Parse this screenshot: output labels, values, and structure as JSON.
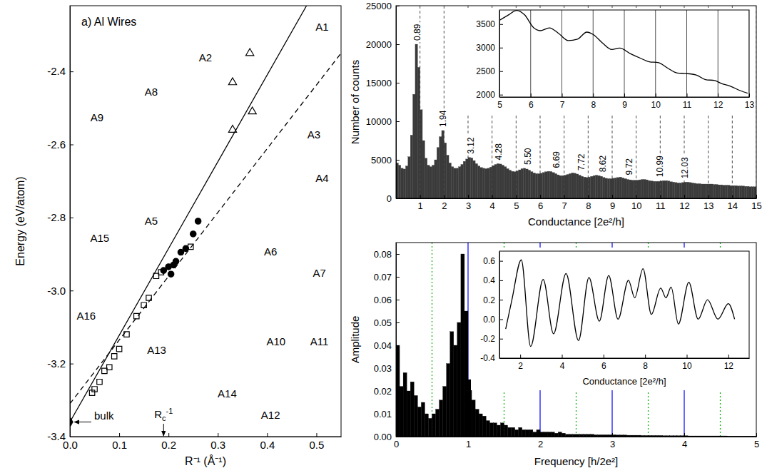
{
  "chart_data": [
    {
      "type": "scatter",
      "title": "a) Al Wires",
      "xlabel": "R⁻¹ (Å⁻¹)",
      "ylabel": "Energy (eV/atom)",
      "xlim": [
        0,
        0.55
      ],
      "ylim": [
        -3.4,
        -2.22
      ],
      "xticks": [
        {
          "value": 0,
          "label": "0.0"
        },
        0.1,
        0.2,
        0.3,
        0.4,
        0.5
      ],
      "yticks": [
        -3.4,
        -3.2,
        {
          "value": -3,
          "label": "-3.0"
        },
        -2.8,
        -2.6,
        -2.4
      ],
      "series": [
        {
          "type": "line",
          "line_style": "solid",
          "color": "#000000",
          "x": [
            0,
            0.48
          ],
          "values": [
            -3.36,
            -2.22
          ]
        },
        {
          "type": "line",
          "line_style": "dashed",
          "color": "#000000",
          "x": [
            0,
            0.55
          ],
          "values": [
            -3.31,
            -2.35
          ]
        },
        {
          "type": "scatter",
          "marker": "filled-circle",
          "color": "#000000",
          "x": [
            0.26,
            0.25,
            0.235,
            0.225,
            0.215,
            0.21,
            0.2,
            0.19,
            0.205
          ],
          "values": [
            -2.81,
            -2.845,
            -2.885,
            -2.895,
            -2.92,
            -2.93,
            -2.935,
            -2.945,
            -2.955
          ]
        },
        {
          "type": "scatter",
          "marker": "open-square",
          "color": "#000000",
          "x": [
            0.245,
            0.175,
            0.185,
            0.16,
            0.15,
            0.135,
            0.115,
            0.1,
            0.09,
            0.08,
            0.07,
            0.06,
            0.05,
            0.045
          ],
          "values": [
            -2.88,
            -2.96,
            -2.95,
            -3.02,
            -3.04,
            -3.07,
            -3.12,
            -3.16,
            -3.18,
            -3.21,
            -3.22,
            -3.25,
            -3.27,
            -3.28
          ]
        },
        {
          "type": "scatter",
          "marker": "open-triangle",
          "color": "#000000",
          "x": [
            0.33,
            0.33,
            0.365,
            0.37
          ],
          "values": [
            -2.56,
            -2.43,
            -2.35,
            -2.51
          ]
        },
        {
          "type": "scatter",
          "marker": "filled-diamond",
          "color": "#000000",
          "x": [
            0
          ],
          "values": [
            -3.36
          ]
        }
      ],
      "annotations": [
        {
          "text": "bulk"
        },
        {
          "text": "R",
          "sub": "c",
          "sup": "-1",
          "x": 0.19
        },
        {
          "text": "A1"
        },
        {
          "text": "A2"
        },
        {
          "text": "A3"
        },
        {
          "text": "A4"
        },
        {
          "text": "A5"
        },
        {
          "text": "A6"
        },
        {
          "text": "A7"
        },
        {
          "text": "A8"
        },
        {
          "text": "A9"
        },
        {
          "text": "A10"
        },
        {
          "text": "A11"
        },
        {
          "text": "A12"
        },
        {
          "text": "A13"
        },
        {
          "text": "A14"
        },
        {
          "text": "A15"
        },
        {
          "text": "A16"
        }
      ]
    },
    {
      "type": "histogram",
      "xlabel": "Conductance [2e²/h]",
      "ylabel": "Number of counts",
      "xlim": [
        0,
        15
      ],
      "ylim": [
        0,
        25000
      ],
      "xticks": [
        1,
        2,
        3,
        4,
        5,
        6,
        7,
        8,
        9,
        10,
        11,
        12,
        13,
        14,
        15
      ],
      "yticks": [
        0,
        5000,
        10000,
        15000,
        20000,
        25000
      ],
      "grid": true,
      "color": "#3a3a3a",
      "bins": [
        0,
        0.1,
        0.2,
        0.3,
        0.4,
        0.5,
        0.6,
        0.7,
        0.8,
        0.9,
        1,
        1.1,
        1.2,
        1.3,
        1.4,
        1.5,
        1.6,
        1.7,
        1.8,
        1.9,
        2,
        2.1,
        2.2,
        2.3,
        2.4,
        2.5,
        2.6,
        2.7,
        2.8,
        2.9,
        3,
        3.1,
        3.2,
        3.3,
        3.4,
        3.5,
        3.6,
        3.7,
        3.8,
        3.9,
        4,
        4.1,
        4.2,
        4.3,
        4.4,
        4.5,
        4.6,
        4.7,
        4.8,
        4.9,
        5,
        5.1,
        5.2,
        5.3,
        5.4,
        5.5,
        5.6,
        5.7,
        5.8,
        5.9,
        6,
        6.1,
        6.2,
        6.3,
        6.4,
        6.5,
        6.6,
        6.7,
        6.8,
        6.9,
        7,
        7.1,
        7.2,
        7.3,
        7.4,
        7.5,
        7.6,
        7.7,
        7.8,
        7.9,
        8,
        8.1,
        8.2,
        8.3,
        8.4,
        8.5,
        8.6,
        8.7,
        8.8,
        8.9,
        9,
        9.1,
        9.2,
        9.3,
        9.4,
        9.5,
        9.6,
        9.7,
        9.8,
        9.9,
        10,
        10.1,
        10.2,
        10.3,
        10.4,
        10.5,
        10.6,
        10.7,
        10.8,
        10.9,
        11,
        11.1,
        11.2,
        11.3,
        11.4,
        11.5,
        11.6,
        11.7,
        11.8,
        11.9,
        12,
        12.1,
        12.2,
        12.3,
        12.4,
        12.5,
        12.6,
        12.7,
        12.8,
        12.9,
        13,
        13.1,
        13.2,
        13.3,
        13.4,
        13.5,
        13.6,
        13.7,
        13.8,
        13.9,
        14,
        14.1,
        14.2,
        14.3,
        14.4,
        14.5,
        14.6,
        14.7,
        14.8,
        14.9,
        15
      ],
      "counts": [
        4600,
        4300,
        3900,
        3800,
        4200,
        5400,
        8200,
        13500,
        20000,
        17000,
        11500,
        7500,
        5200,
        4300,
        4100,
        4300,
        5000,
        6600,
        8000,
        8800,
        7200,
        5600,
        4600,
        4100,
        3900,
        3900,
        4100,
        4400,
        4800,
        5100,
        5300,
        5250,
        4900,
        4500,
        4200,
        4000,
        3900,
        3850,
        3900,
        4050,
        4250,
        4400,
        4500,
        4450,
        4300,
        4100,
        3850,
        3650,
        3500,
        3450,
        3550,
        3700,
        3850,
        3900,
        3800,
        3650,
        3450,
        3300,
        3200,
        3200,
        3250,
        3350,
        3450,
        3500,
        3480,
        3350,
        3200,
        3050,
        2950,
        2950,
        3000,
        3100,
        3200,
        3300,
        3250,
        3150,
        3000,
        2850,
        2750,
        2700,
        2750,
        2850,
        2950,
        3000,
        2950,
        2850,
        2700,
        2600,
        2550,
        2550,
        2600,
        2650,
        2700,
        2750,
        2650,
        2550,
        2450,
        2400,
        2350,
        2350,
        2350,
        2400,
        2450,
        2450,
        2400,
        2300,
        2250,
        2200,
        2200,
        2200,
        2250,
        2300,
        2300,
        2250,
        2150,
        2100,
        2050,
        2000,
        2000,
        2050,
        2100,
        2100,
        2050,
        2000,
        1950,
        1900,
        1900,
        1850,
        1850,
        1850,
        1850,
        1850,
        1800,
        1800,
        1750,
        1750,
        1700,
        1700,
        1700,
        1650,
        1650,
        1650,
        1600,
        1600,
        1600,
        1550,
        1550,
        1500,
        1500,
        1500
      ],
      "peaks": [
        0.89,
        1.94,
        3.12,
        4.28,
        {
          "value": 5.5,
          "label": "5.50"
        },
        6.69,
        7.72,
        8.62,
        9.72,
        10.99,
        12.03
      ]
    },
    {
      "type": "line",
      "xlim": [
        5,
        13
      ],
      "ylim": [
        1950,
        3800
      ],
      "xticks": [
        5,
        6,
        7,
        8,
        9,
        10,
        11,
        12,
        13
      ],
      "yticks": [
        2000,
        2500,
        3000,
        3500
      ],
      "grid": true,
      "color": "#000000",
      "x": [
        5.0,
        5.3,
        5.55,
        5.8,
        6.1,
        6.3,
        6.6,
        6.9,
        7.2,
        7.5,
        7.8,
        8.0,
        8.3,
        8.6,
        8.85,
        9.2,
        9.5,
        9.8,
        10.1,
        10.4,
        10.7,
        10.95,
        11.3,
        11.6,
        11.9,
        12.1,
        12.4,
        12.7,
        12.95
      ],
      "values": [
        3580,
        3700,
        3790,
        3700,
        3420,
        3360,
        3420,
        3300,
        3150,
        3180,
        3330,
        3280,
        3100,
        2960,
        2990,
        2870,
        2780,
        2700,
        2680,
        2560,
        2460,
        2450,
        2420,
        2320,
        2300,
        2240,
        2180,
        2090,
        2030
      ]
    },
    {
      "type": "histogram",
      "xlabel": "Frequency [h/2e²]",
      "ylabel": "Amplitude",
      "xlim": [
        0,
        5
      ],
      "ylim": [
        0,
        0.085
      ],
      "xticks": [
        0,
        1,
        2,
        3,
        4,
        5
      ],
      "yticks": [
        {
          "value": 0,
          "label": "0.00"
        },
        0.01,
        0.02,
        0.03,
        0.04,
        0.05,
        0.06,
        0.07,
        0.08
      ],
      "color": "#000000",
      "bins": [
        0,
        0.05,
        0.1,
        0.15,
        0.2,
        0.25,
        0.3,
        0.35,
        0.4,
        0.45,
        0.5,
        0.55,
        0.6,
        0.65,
        0.7,
        0.75,
        0.8,
        0.85,
        0.9,
        0.95,
        1,
        1.05,
        1.1,
        1.15,
        1.2,
        1.25,
        1.3,
        1.35,
        1.4,
        1.45,
        1.5,
        1.55,
        1.6,
        1.65,
        1.7,
        1.75,
        1.8,
        1.85,
        1.9,
        1.95,
        2,
        2.05,
        2.1,
        2.15,
        2.2,
        2.25,
        2.3,
        2.35,
        2.4,
        2.45,
        2.5,
        2.55,
        2.6,
        2.65,
        2.7,
        2.75,
        2.8,
        2.85,
        2.9,
        2.95,
        3,
        3.05,
        3.1,
        3.15,
        3.2,
        3.25,
        3.3,
        3.35,
        3.4,
        3.45,
        3.5,
        3.55,
        3.6,
        3.65,
        3.7,
        3.75,
        3.8,
        3.85,
        3.9,
        3.95,
        4,
        4.05,
        4.1,
        4.15,
        4.2,
        4.25,
        4.3,
        4.35,
        4.4,
        4.45,
        4.5,
        4.55,
        4.6,
        4.65,
        4.7,
        4.75,
        4.8,
        4.85,
        4.9,
        4.95,
        5
      ],
      "counts": [
        0.04,
        0.022,
        0.028,
        0.02,
        0.024,
        0.018,
        0.013,
        0.015,
        0.01,
        0.008,
        0.01,
        0.012,
        0.016,
        0.022,
        0.032,
        0.046,
        0.04,
        0.05,
        0.08,
        0.055,
        0.025,
        0.016,
        0.012,
        0.01,
        0.009,
        0.007,
        0.006,
        0.006,
        0.005,
        0.006,
        0.005,
        0.004,
        0.004,
        0.003,
        0.004,
        0.003,
        0.003,
        0.003,
        0.002,
        0.003,
        0.002,
        0.002,
        0.002,
        0.002,
        0.0015,
        0.002,
        0.0015,
        0.001,
        0.001,
        0.001,
        0.001,
        0.001,
        0.001,
        0.001,
        0.001,
        0.0008,
        0.0008,
        0.0008,
        0.0008,
        0.0008,
        0.0008,
        0.0007,
        0.0007,
        0.0007,
        0.0006,
        0.0006,
        0.0006,
        0.0006,
        0.0005,
        0.0005,
        0.0005,
        0.0005,
        0.0005,
        0.0005,
        0.0004,
        0.0004,
        0.0004,
        0.0004,
        0.0004,
        0.0004,
        0.0004,
        0.0003,
        0.0003,
        0.0003,
        0.0003,
        0.0003,
        0.0003,
        0.0003,
        0.0003,
        0.0003,
        0.0003,
        0.0003,
        0.0002,
        0.0002,
        0.0002,
        0.0002,
        0.0002,
        0.0002,
        0.0002,
        0.0002
      ],
      "vlines": [
        {
          "values": [
            1,
            2,
            3,
            4
          ],
          "color": "#0000ff",
          "line_style": "solid"
        },
        {
          "values": [
            0.5,
            1.5,
            2.5,
            3.5,
            4.5
          ],
          "color": "#00b000",
          "line_style": "dotted"
        }
      ]
    },
    {
      "type": "line",
      "xlabel": "Conductance [2e²/h]",
      "xlim": [
        1,
        13
      ],
      "ylim": [
        -0.4,
        0.7
      ],
      "xticks": [
        2,
        4,
        6,
        8,
        10,
        12
      ],
      "yticks": [
        -0.4,
        -0.2,
        {
          "value": 0,
          "label": "0.0"
        },
        0.2,
        0.4,
        0.6
      ],
      "color": "#000000",
      "x": [
        1.3,
        1.6,
        2.05,
        2.5,
        3.1,
        3.6,
        4.2,
        4.8,
        5.3,
        5.8,
        6.25,
        6.7,
        7.2,
        7.5,
        7.9,
        8.3,
        8.75,
        9.0,
        9.25,
        9.6,
        10.1,
        10.55,
        11.0,
        11.5,
        12.0,
        12.3
      ],
      "values": [
        -0.1,
        0.2,
        0.61,
        -0.28,
        0.41,
        -0.15,
        0.47,
        -0.22,
        0.43,
        -0.02,
        0.45,
        0.0,
        0.4,
        0.22,
        0.52,
        0.05,
        0.32,
        0.22,
        0.33,
        -0.05,
        0.38,
        0.0,
        0.2,
        0.0,
        0.16,
        0.0
      ]
    }
  ]
}
